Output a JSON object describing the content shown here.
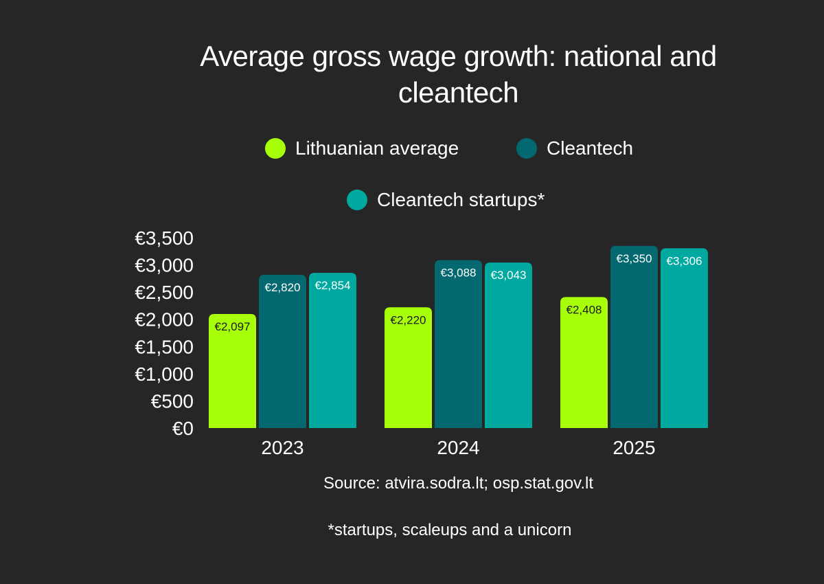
{
  "chart_data": {
    "type": "bar",
    "title": "Average gross wage growth: national and cleantech",
    "categories": [
      "2023",
      "2024",
      "2025"
    ],
    "series": [
      {
        "name": "Lithuanian average",
        "values": [
          2097,
          2220,
          2408
        ],
        "labels": [
          "€2,097",
          "€2,220",
          "€2,408"
        ],
        "color": "#a8ff0a"
      },
      {
        "name": "Cleantech",
        "values": [
          2820,
          3088,
          3350
        ],
        "labels": [
          "€2,820",
          "€3,088",
          "€3,350"
        ],
        "color": "#03686f"
      },
      {
        "name": "Cleantech startups*",
        "values": [
          2854,
          3043,
          3306
        ],
        "labels": [
          "€2,854",
          "€3,043",
          "€3,306"
        ],
        "color": "#00a9a0"
      }
    ],
    "ylim": [
      0,
      3500
    ],
    "yticks": [
      0,
      500,
      1000,
      1500,
      2000,
      2500,
      3000,
      3500
    ],
    "ytick_labels": [
      "€0",
      "€500",
      "€1,000",
      "€1,500",
      "€2,000",
      "€2,500",
      "€3,000",
      "€3,500"
    ],
    "xlabel": "",
    "ylabel": "",
    "grid": false,
    "legend_position": "top"
  },
  "source_text": "Source: atvira.sodra.lt; osp.stat.gov.lt",
  "footnote_text": "*startups, scaleups and a unicorn",
  "colors": {
    "background": "#262626",
    "text": "#ffffff",
    "label_dark": "#1a1a1a"
  }
}
